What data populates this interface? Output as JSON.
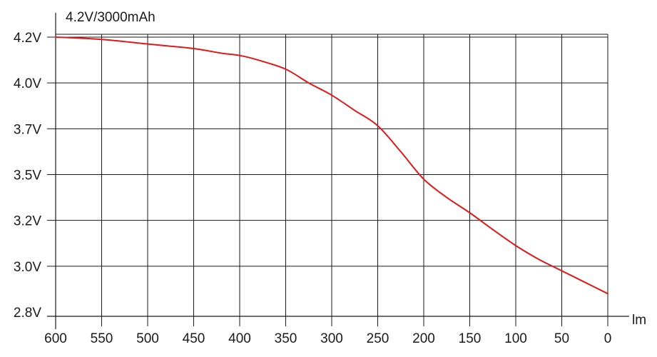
{
  "chart_data": {
    "type": "line",
    "title": "4.2V/3000mAh",
    "xlabel": "lm",
    "ylabel": "",
    "x_reversed": true,
    "xlim": [
      600,
      0
    ],
    "grid": true,
    "x_ticks": [
      600,
      550,
      500,
      450,
      400,
      350,
      300,
      250,
      200,
      150,
      100,
      50,
      0
    ],
    "y_ticks": [
      {
        "label": "4.2V",
        "value": 4.2
      },
      {
        "label": "4.0V",
        "value": 4.0
      },
      {
        "label": "3.7V",
        "value": 3.7
      },
      {
        "label": "3.5V",
        "value": 3.5
      },
      {
        "label": "3.2V",
        "value": 3.2
      },
      {
        "label": "3.0V",
        "value": 3.0
      },
      {
        "label": "2.8V",
        "value": 2.8
      }
    ],
    "series": [
      {
        "color": "#e01818",
        "points": [
          [
            600,
            4.2
          ],
          [
            550,
            4.19
          ],
          [
            500,
            4.17
          ],
          [
            450,
            4.15
          ],
          [
            420,
            4.13
          ],
          [
            400,
            4.12
          ],
          [
            380,
            4.1
          ],
          [
            350,
            4.06
          ],
          [
            325,
            4.0
          ],
          [
            300,
            3.92
          ],
          [
            275,
            3.82
          ],
          [
            250,
            3.72
          ],
          [
            225,
            3.6
          ],
          [
            200,
            3.47
          ],
          [
            175,
            3.35
          ],
          [
            150,
            3.25
          ],
          [
            125,
            3.16
          ],
          [
            100,
            3.09
          ],
          [
            75,
            3.03
          ],
          [
            50,
            2.98
          ],
          [
            25,
            2.93
          ],
          [
            0,
            2.88
          ]
        ]
      }
    ]
  }
}
